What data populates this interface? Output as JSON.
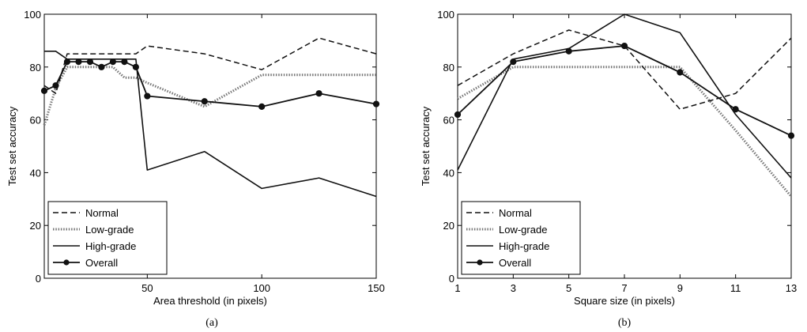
{
  "chart_data": [
    {
      "type": "line",
      "caption": "(a)",
      "xlabel": "Area threshold (in pixels)",
      "ylabel": "Test set accuracy",
      "xlim": [
        5,
        150
      ],
      "ylim": [
        0,
        100
      ],
      "xticks": [
        50,
        100,
        150
      ],
      "yticks": [
        0,
        20,
        40,
        60,
        80,
        100
      ],
      "grid": false,
      "legend": "bottom-left",
      "series": [
        {
          "name": "Normal",
          "style": "dashed",
          "x": [
            5,
            10,
            15,
            20,
            25,
            30,
            35,
            40,
            45,
            50,
            75,
            100,
            125,
            150
          ],
          "y": [
            73,
            70,
            85,
            85,
            85,
            85,
            85,
            85,
            85,
            88,
            85,
            79,
            91,
            85
          ]
        },
        {
          "name": "Low-grade",
          "style": "dotted",
          "x": [
            5,
            10,
            15,
            20,
            25,
            30,
            35,
            40,
            45,
            50,
            75,
            100,
            125,
            150
          ],
          "y": [
            58,
            72,
            80,
            80,
            80,
            80,
            80,
            76,
            76,
            74,
            65,
            77,
            77,
            77
          ]
        },
        {
          "name": "High-grade",
          "style": "solid",
          "x": [
            5,
            10,
            15,
            20,
            25,
            30,
            35,
            40,
            45,
            50,
            75,
            100,
            125,
            150
          ],
          "y": [
            86,
            86,
            83,
            83,
            83,
            83,
            83,
            83,
            83,
            41,
            48,
            34,
            38,
            31
          ]
        },
        {
          "name": "Overall",
          "style": "solid-marker",
          "x": [
            5,
            10,
            15,
            20,
            25,
            30,
            35,
            40,
            45,
            50,
            75,
            100,
            125,
            150
          ],
          "y": [
            71,
            73,
            82,
            82,
            82,
            80,
            82,
            82,
            80,
            69,
            67,
            65,
            70,
            66
          ]
        }
      ]
    },
    {
      "type": "line",
      "caption": "(b)",
      "xlabel": "Square size (in pixels)",
      "ylabel": "Test set accuracy",
      "xlim": [
        1,
        13
      ],
      "ylim": [
        0,
        100
      ],
      "xticks": [
        1,
        3,
        5,
        7,
        9,
        11,
        13
      ],
      "yticks": [
        0,
        20,
        40,
        60,
        80,
        100
      ],
      "grid": false,
      "legend": "bottom-left",
      "series": [
        {
          "name": "Normal",
          "style": "dashed",
          "x": [
            1,
            3,
            5,
            7,
            9,
            11,
            13
          ],
          "y": [
            73,
            85,
            94,
            88,
            64,
            70,
            91
          ]
        },
        {
          "name": "Low-grade",
          "style": "dotted",
          "x": [
            1,
            3,
            5,
            7,
            9,
            11,
            13
          ],
          "y": [
            68,
            80,
            80,
            80,
            80,
            56,
            31
          ]
        },
        {
          "name": "High-grade",
          "style": "solid",
          "x": [
            1,
            3,
            5,
            7,
            9,
            11,
            13
          ],
          "y": [
            41,
            83,
            87,
            100,
            93,
            62,
            38
          ]
        },
        {
          "name": "Overall",
          "style": "solid-marker",
          "x": [
            1,
            3,
            5,
            7,
            9,
            11,
            13
          ],
          "y": [
            62,
            82,
            86,
            88,
            78,
            64,
            54
          ]
        }
      ]
    }
  ]
}
